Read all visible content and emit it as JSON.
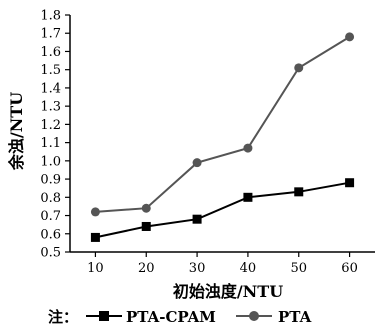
{
  "chart_data": {
    "type": "line",
    "xlabel": "初始浊度/NTU",
    "ylabel": "余浊/NTU",
    "x": [
      10,
      20,
      30,
      40,
      50,
      60
    ],
    "xlim": [
      5,
      65
    ],
    "ylim": [
      0.5,
      1.8
    ],
    "yticks": [
      "0.5",
      "0.6",
      "0.7",
      "0.8",
      "0.9",
      "1.0",
      "1.1",
      "1.2",
      "1.3",
      "1.4",
      "1.5",
      "1.6",
      "1.7",
      "1.8"
    ],
    "xticks": [
      "10",
      "20",
      "30",
      "40",
      "50",
      "60"
    ],
    "grid": false,
    "legend_position": "bottom",
    "legend_prefix": "注：",
    "series": [
      {
        "name": "PTA-CPAM",
        "marker": "square",
        "color": "#000000",
        "values": [
          0.58,
          0.64,
          0.68,
          0.8,
          0.83,
          0.88
        ]
      },
      {
        "name": "PTA",
        "marker": "circle",
        "color": "#555555",
        "values": [
          0.72,
          0.74,
          0.99,
          1.07,
          1.51,
          1.68
        ]
      }
    ]
  }
}
